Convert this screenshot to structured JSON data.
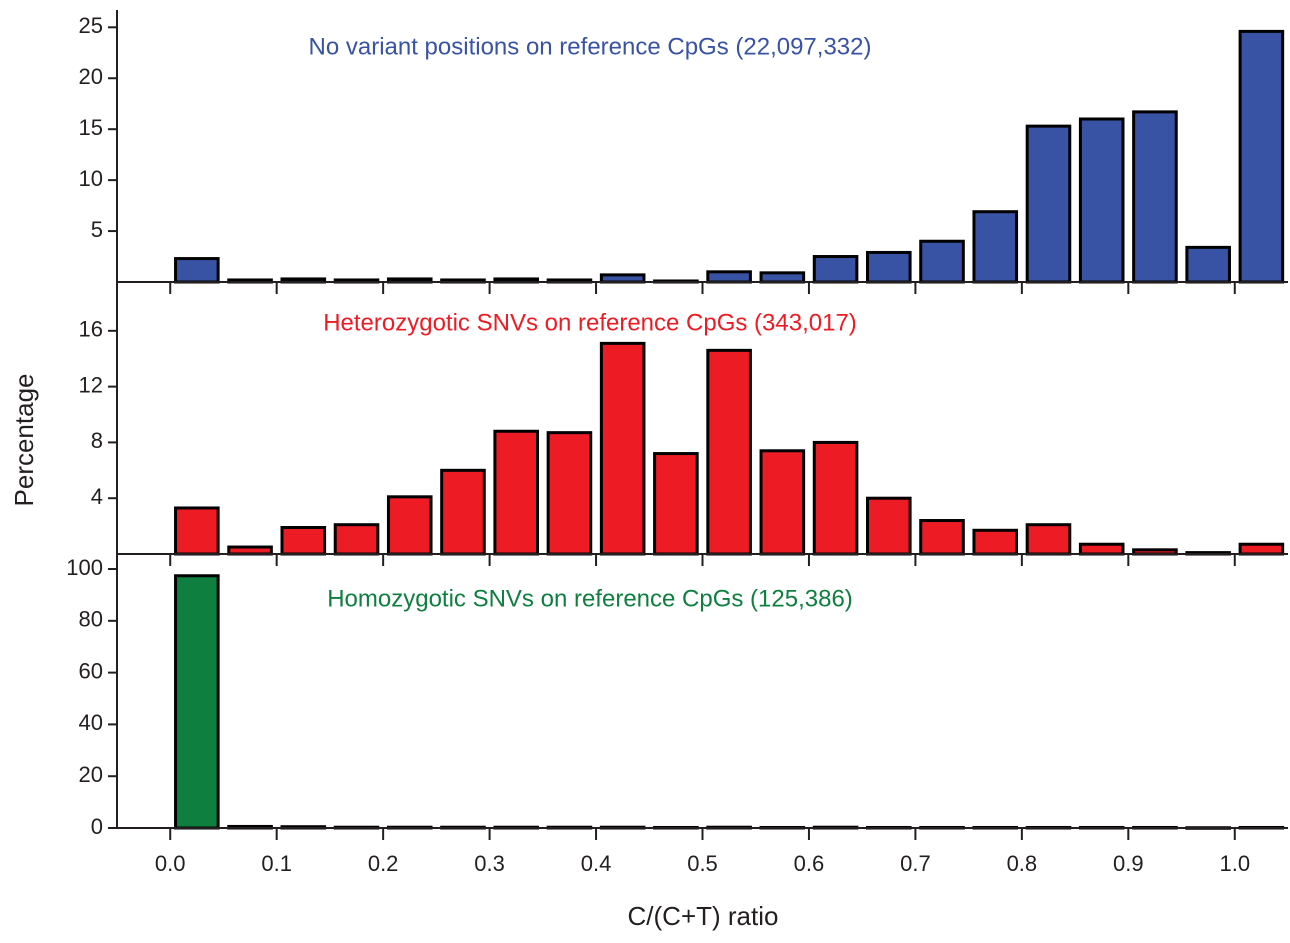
{
  "chart_data": [
    {
      "type": "bar",
      "annotation": "No variant positions on reference CpGs (22,097,332)",
      "color": "#3953a4",
      "x": [
        0.025,
        0.075,
        0.125,
        0.175,
        0.225,
        0.275,
        0.325,
        0.375,
        0.425,
        0.475,
        0.525,
        0.575,
        0.625,
        0.675,
        0.725,
        0.775,
        0.825,
        0.875,
        0.925,
        0.975,
        1.025
      ],
      "values": [
        2.3,
        0.2,
        0.3,
        0.2,
        0.3,
        0.2,
        0.3,
        0.2,
        0.7,
        0.1,
        1.0,
        0.9,
        2.5,
        2.9,
        4.0,
        6.9,
        15.3,
        16.0,
        16.7,
        3.4,
        24.6
      ],
      "xlim": [
        -0.05,
        1.05
      ],
      "ylim": [
        0,
        26.7
      ],
      "yticks": [
        5,
        10,
        15,
        20,
        25
      ]
    },
    {
      "type": "bar",
      "annotation": "Heterozygotic SNVs on reference CpGs (343,017)",
      "color": "#ed1c24",
      "ylabel": "Percentage",
      "x": [
        0.025,
        0.075,
        0.125,
        0.175,
        0.225,
        0.275,
        0.325,
        0.375,
        0.425,
        0.475,
        0.525,
        0.575,
        0.625,
        0.675,
        0.725,
        0.775,
        0.825,
        0.875,
        0.925,
        0.975,
        1.025
      ],
      "values": [
        3.3,
        0.5,
        1.9,
        2.1,
        4.1,
        6.0,
        8.8,
        8.7,
        15.1,
        7.2,
        14.6,
        7.4,
        8.0,
        4.0,
        2.4,
        1.7,
        2.1,
        0.7,
        0.3,
        0.1,
        0.7
      ],
      "xlim": [
        -0.05,
        1.05
      ],
      "ylim": [
        0,
        19.5
      ],
      "yticks": [
        4,
        8,
        12,
        16
      ]
    },
    {
      "type": "bar",
      "annotation": "Homozygotic SNVs on reference CpGs (125,386)",
      "color": "#0f7f3f",
      "xlabel": "C/(C+T) ratio",
      "x": [
        0.025,
        0.075,
        0.125,
        0.175,
        0.225,
        0.275,
        0.325,
        0.375,
        0.425,
        0.475,
        0.525,
        0.575,
        0.625,
        0.675,
        0.725,
        0.775,
        0.825,
        0.875,
        0.925,
        0.975,
        1.025
      ],
      "values": [
        97.4,
        0.6,
        0.5,
        0.3,
        0.3,
        0.3,
        0.3,
        0.3,
        0.3,
        0.2,
        0.3,
        0.2,
        0.3,
        0.2,
        0.2,
        0.2,
        0.2,
        0.2,
        0.2,
        0.1,
        0.2
      ],
      "xlim": [
        -0.05,
        1.05
      ],
      "ylim": [
        0,
        105.8
      ],
      "yticks": [
        0,
        20,
        40,
        60,
        80,
        100
      ],
      "xticks": [
        {
          "value": 0,
          "label": "0.0"
        },
        0.1,
        0.2,
        0.3,
        0.4,
        0.5,
        0.6,
        0.7,
        0.8,
        0.9,
        {
          "value": 1,
          "label": "1.0"
        }
      ]
    }
  ]
}
